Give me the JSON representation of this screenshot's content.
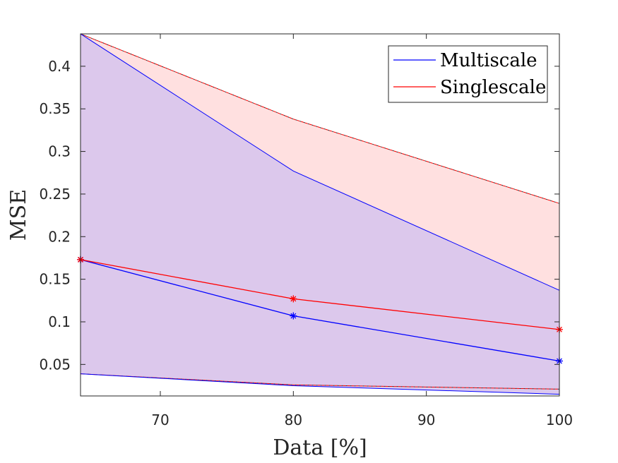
{
  "chart_data": {
    "type": "line",
    "xlabel": "Data [%]",
    "ylabel": "MSE",
    "xlim": [
      64,
      100
    ],
    "ylim": [
      0.013,
      0.438
    ],
    "xticks": [
      70,
      80,
      90,
      100
    ],
    "yticks": [
      0.05,
      0.1,
      0.15,
      0.2,
      0.25,
      0.3,
      0.35,
      0.4
    ],
    "ytick_labels": [
      "0.05",
      "0.1",
      "0.15",
      "0.2",
      "0.25",
      "0.3",
      "0.35",
      "0.4"
    ],
    "xtick_labels": [
      "70",
      "80",
      "90",
      "100"
    ],
    "grid": false,
    "legend_position": "top-right",
    "x": [
      64,
      80,
      100
    ],
    "series": [
      {
        "name": "Multiscale",
        "color": "#0000ff",
        "fill": "#dcc8ec",
        "values": [
          0.173,
          0.107,
          0.054
        ],
        "upper": [
          0.438,
          0.277,
          0.137
        ],
        "lower": [
          0.039,
          0.025,
          0.015
        ],
        "marker": "asterisk"
      },
      {
        "name": "Singlescale",
        "color": "#ff0000",
        "fill": "#ffe0e0",
        "values": [
          0.173,
          0.127,
          0.091
        ],
        "upper": [
          0.438,
          0.338,
          0.239
        ],
        "lower": [
          0.039,
          0.026,
          0.021
        ],
        "marker": "asterisk"
      }
    ]
  }
}
